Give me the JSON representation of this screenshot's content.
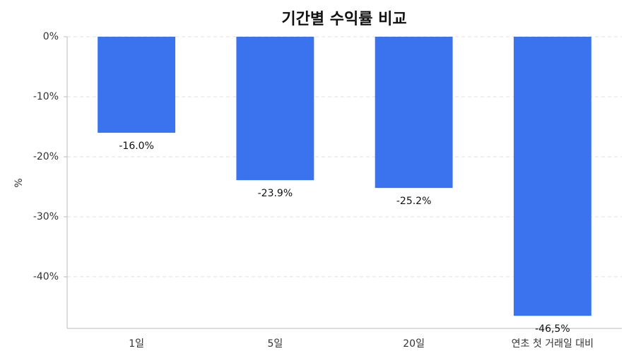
{
  "chart_data": {
    "type": "bar",
    "title": "기간별 수익률 비교",
    "ylabel": "%",
    "categories": [
      "1일",
      "5일",
      "20일",
      "연초 첫 거래일 대비"
    ],
    "values": [
      -16.0,
      -23.9,
      -25.2,
      -46.5
    ],
    "value_labels": [
      "-16.0%",
      "-23.9%",
      "-25.2%",
      "-46,5%"
    ],
    "color": "#3b73ee",
    "ylim": [
      -48.6,
      0
    ],
    "yticks": [
      {
        "value": 0,
        "label": "0%"
      },
      {
        "value": -10,
        "label": "-10%"
      },
      {
        "value": -20,
        "label": "-20%"
      },
      {
        "value": -30,
        "label": "-30%"
      },
      {
        "value": -40,
        "label": "-40%"
      }
    ],
    "grid": true
  }
}
